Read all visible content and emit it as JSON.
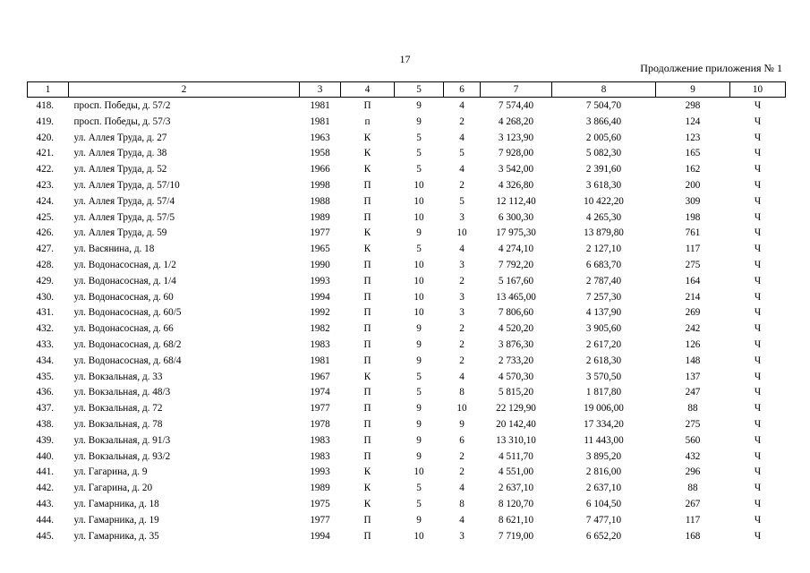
{
  "page_number": "17",
  "caption": "Продолжение приложения № 1",
  "table": {
    "headers": [
      "1",
      "2",
      "3",
      "4",
      "5",
      "6",
      "7",
      "8",
      "9",
      "10"
    ],
    "rows": [
      [
        "418.",
        "просп. Победы, д. 57/2",
        "1981",
        "П",
        "9",
        "4",
        "7 574,40",
        "7 504,70",
        "298",
        "Ч"
      ],
      [
        "419.",
        "просп. Победы, д. 57/3",
        "1981",
        "п",
        "9",
        "2",
        "4 268,20",
        "3 866,40",
        "124",
        "Ч"
      ],
      [
        "420.",
        "ул. Аллея Труда, д. 27",
        "1963",
        "К",
        "5",
        "4",
        "3 123,90",
        "2 005,60",
        "123",
        "Ч"
      ],
      [
        "421.",
        "ул. Аллея Труда, д. 38",
        "1958",
        "К",
        "5",
        "5",
        "7 928,00",
        "5 082,30",
        "165",
        "Ч"
      ],
      [
        "422.",
        "ул. Аллея Труда, д. 52",
        "1966",
        "К",
        "5",
        "4",
        "3 542,00",
        "2 391,60",
        "162",
        "Ч"
      ],
      [
        "423.",
        "ул. Аллея Труда, д. 57/10",
        "1998",
        "П",
        "10",
        "2",
        "4 326,80",
        "3 618,30",
        "200",
        "Ч"
      ],
      [
        "424.",
        "ул. Аллея Труда, д. 57/4",
        "1988",
        "П",
        "10",
        "5",
        "12 112,40",
        "10 422,20",
        "309",
        "Ч"
      ],
      [
        "425.",
        "ул. Аллея Труда, д. 57/5",
        "1989",
        "П",
        "10",
        "3",
        "6 300,30",
        "4 265,30",
        "198",
        "Ч"
      ],
      [
        "426.",
        "ул. Аллея Труда, д. 59",
        "1977",
        "К",
        "9",
        "10",
        "17 975,30",
        "13 879,80",
        "761",
        "Ч"
      ],
      [
        "427.",
        "ул. Васянина, д. 18",
        "1965",
        "К",
        "5",
        "4",
        "4 274,10",
        "2 127,10",
        "117",
        "Ч"
      ],
      [
        "428.",
        "ул. Водонасосная, д. 1/2",
        "1990",
        "П",
        "10",
        "3",
        "7 792,20",
        "6 683,70",
        "275",
        "Ч"
      ],
      [
        "429.",
        "ул. Водонасосная, д. 1/4",
        "1993",
        "П",
        "10",
        "2",
        "5 167,60",
        "2 787,40",
        "164",
        "Ч"
      ],
      [
        "430.",
        "ул. Водонасосная, д. 60",
        "1994",
        "П",
        "10",
        "3",
        "13 465,00",
        "7 257,30",
        "214",
        "Ч"
      ],
      [
        "431.",
        "ул. Водонасосная, д. 60/5",
        "1992",
        "П",
        "10",
        "3",
        "7 806,60",
        "4 137,90",
        "269",
        "Ч"
      ],
      [
        "432.",
        "ул. Водонасосная, д. 66",
        "1982",
        "П",
        "9",
        "2",
        "4 520,20",
        "3 905,60",
        "242",
        "Ч"
      ],
      [
        "433.",
        "ул. Водонасосная, д. 68/2",
        "1983",
        "П",
        "9",
        "2",
        "3 876,30",
        "2 617,20",
        "126",
        "Ч"
      ],
      [
        "434.",
        "ул. Водонасосная, д. 68/4",
        "1981",
        "П",
        "9",
        "2",
        "2 733,20",
        "2 618,30",
        "148",
        "Ч"
      ],
      [
        "435.",
        "ул. Вокзальная, д. 33",
        "1967",
        "К",
        "5",
        "4",
        "4 570,30",
        "3 570,50",
        "137",
        "Ч"
      ],
      [
        "436.",
        "ул. Вокзальная, д. 48/3",
        "1974",
        "П",
        "5",
        "8",
        "5 815,20",
        "1 817,80",
        "247",
        "Ч"
      ],
      [
        "437.",
        "ул. Вокзальная, д. 72",
        "1977",
        "П",
        "9",
        "10",
        "22 129,90",
        "19 006,00",
        "88",
        "Ч"
      ],
      [
        "438.",
        "ул. Вокзальная, д. 78",
        "1978",
        "П",
        "9",
        "9",
        "20 142,40",
        "17 334,20",
        "275",
        "Ч"
      ],
      [
        "439.",
        "ул. Вокзальная, д. 91/3",
        "1983",
        "П",
        "9",
        "6",
        "13 310,10",
        "11 443,00",
        "560",
        "Ч"
      ],
      [
        "440.",
        "ул. Вокзальная, д. 93/2",
        "1983",
        "П",
        "9",
        "2",
        "4 511,70",
        "3 895,20",
        "432",
        "Ч"
      ],
      [
        "441.",
        "ул. Гагарина, д. 9",
        "1993",
        "К",
        "10",
        "2",
        "4 551,00",
        "2 816,00",
        "296",
        "Ч"
      ],
      [
        "442.",
        "ул. Гагарина, д. 20",
        "1989",
        "К",
        "5",
        "4",
        "2 637,10",
        "2 637,10",
        "88",
        "Ч"
      ],
      [
        "443.",
        "ул. Гамарника, д. 18",
        "1975",
        "К",
        "5",
        "8",
        "8 120,70",
        "6 104,50",
        "267",
        "Ч"
      ],
      [
        "444.",
        "ул. Гамарника, д. 19",
        "1977",
        "П",
        "9",
        "4",
        "8 621,10",
        "7 477,10",
        "117",
        "Ч"
      ],
      [
        "445.",
        "ул. Гамарника, д. 35",
        "1994",
        "П",
        "10",
        "3",
        "7 719,00",
        "6 652,20",
        "168",
        "Ч"
      ]
    ]
  }
}
